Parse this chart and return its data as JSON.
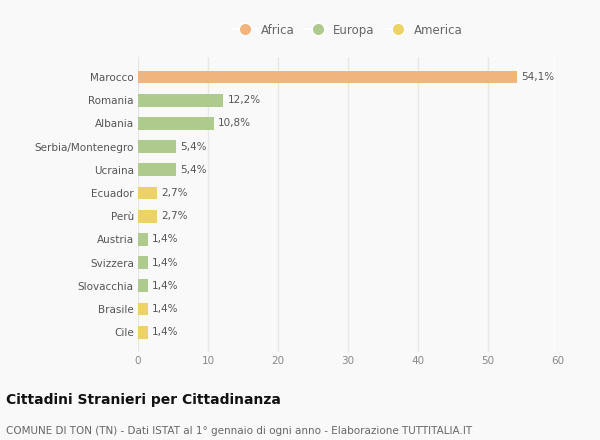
{
  "categories": [
    "Marocco",
    "Romania",
    "Albania",
    "Serbia/Montenegro",
    "Ucraina",
    "Ecuador",
    "Perù",
    "Austria",
    "Svizzera",
    "Slovacchia",
    "Brasile",
    "Cile"
  ],
  "values": [
    54.1,
    12.2,
    10.8,
    5.4,
    5.4,
    2.7,
    2.7,
    1.4,
    1.4,
    1.4,
    1.4,
    1.4
  ],
  "labels": [
    "54,1%",
    "12,2%",
    "10,8%",
    "5,4%",
    "5,4%",
    "2,7%",
    "2,7%",
    "1,4%",
    "1,4%",
    "1,4%",
    "1,4%",
    "1,4%"
  ],
  "continents": [
    "Africa",
    "Europa",
    "Europa",
    "Europa",
    "Europa",
    "America",
    "America",
    "Europa",
    "Europa",
    "Europa",
    "America",
    "America"
  ],
  "colors": {
    "Africa": "#F2B47E",
    "Europa": "#AECA8C",
    "America": "#EDD268"
  },
  "legend_order": [
    "Africa",
    "Europa",
    "America"
  ],
  "xlim": [
    0,
    60
  ],
  "xticks": [
    0,
    10,
    20,
    30,
    40,
    50,
    60
  ],
  "title_main": "Cittadini Stranieri per Cittadinanza",
  "title_sub": "COMUNE DI TON (TN) - Dati ISTAT al 1° gennaio di ogni anno - Elaborazione TUTTITALIA.IT",
  "background_color": "#f9f9f9",
  "grid_color": "#e8e8e8",
  "bar_height": 0.55,
  "label_fontsize": 7.5,
  "tick_fontsize": 7.5,
  "legend_fontsize": 8.5,
  "title_main_fontsize": 10,
  "title_sub_fontsize": 7.5
}
